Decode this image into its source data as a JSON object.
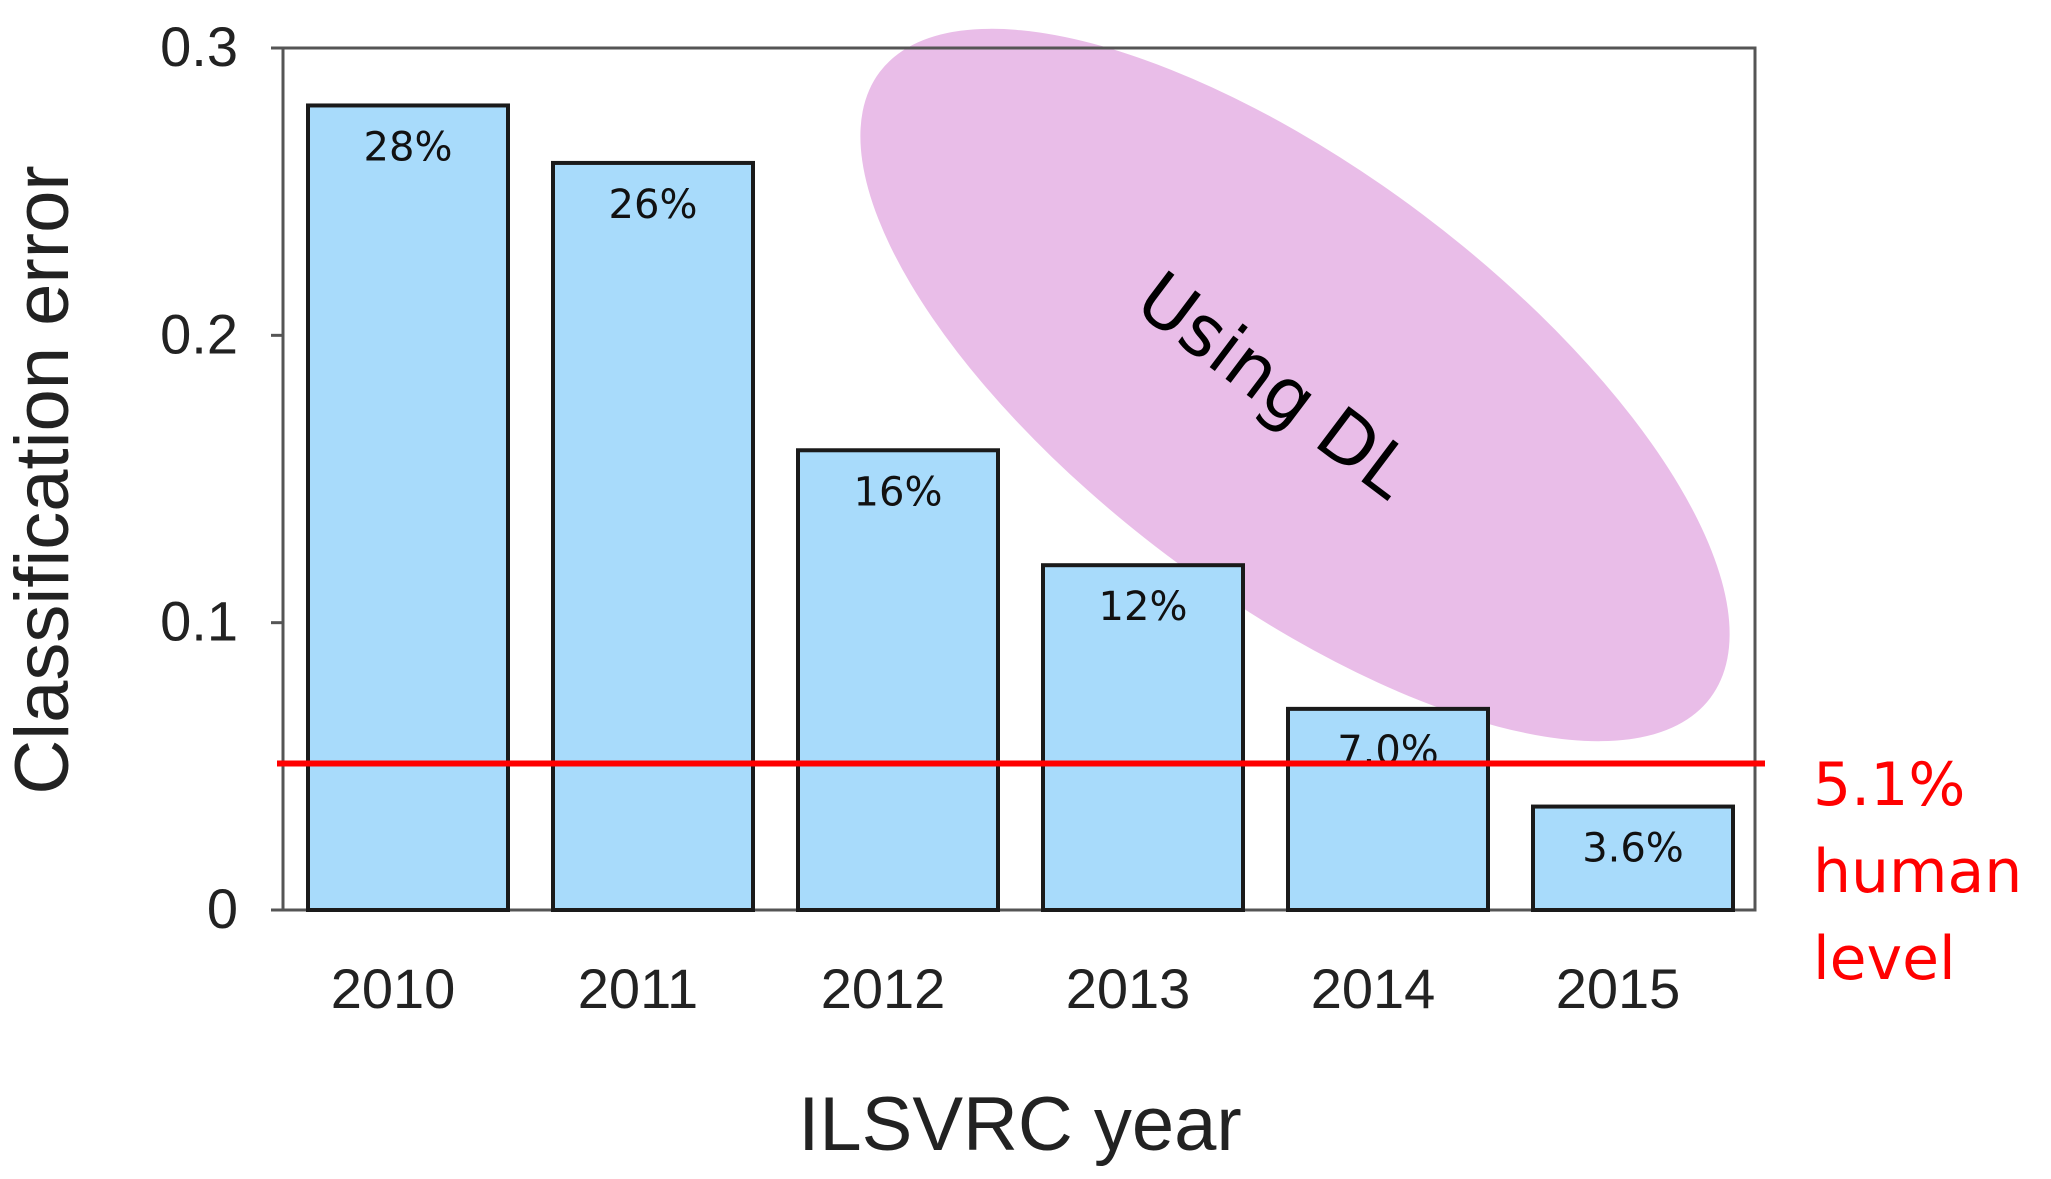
{
  "chart_data": {
    "type": "bar",
    "categories": [
      "2010",
      "2011",
      "2012",
      "2013",
      "2014",
      "2015"
    ],
    "values": [
      0.28,
      0.26,
      0.16,
      0.12,
      0.07,
      0.036
    ],
    "data_labels": [
      "28%",
      "26%",
      "16%",
      "12%",
      "7.0%",
      "3.6%"
    ],
    "xlabel": "ILSVRC year",
    "ylabel": "Classification error",
    "ylim": [
      0,
      0.3
    ],
    "yticks": [
      0,
      0.1,
      0.2,
      0.3
    ],
    "ytick_labels": [
      "0",
      "0.1",
      "0.2",
      "0.3"
    ],
    "grid": false,
    "colors": {
      "bar_fill": "#a8dbfb",
      "bar_stroke": "#1a1a1a",
      "reference_line": "#ff0000",
      "annotation_fill": "#e9bde8"
    },
    "reference_line": {
      "value": 0.051,
      "label_lines": [
        "5.1%",
        "human",
        "level"
      ]
    },
    "annotation": {
      "text": "Using DL"
    }
  }
}
